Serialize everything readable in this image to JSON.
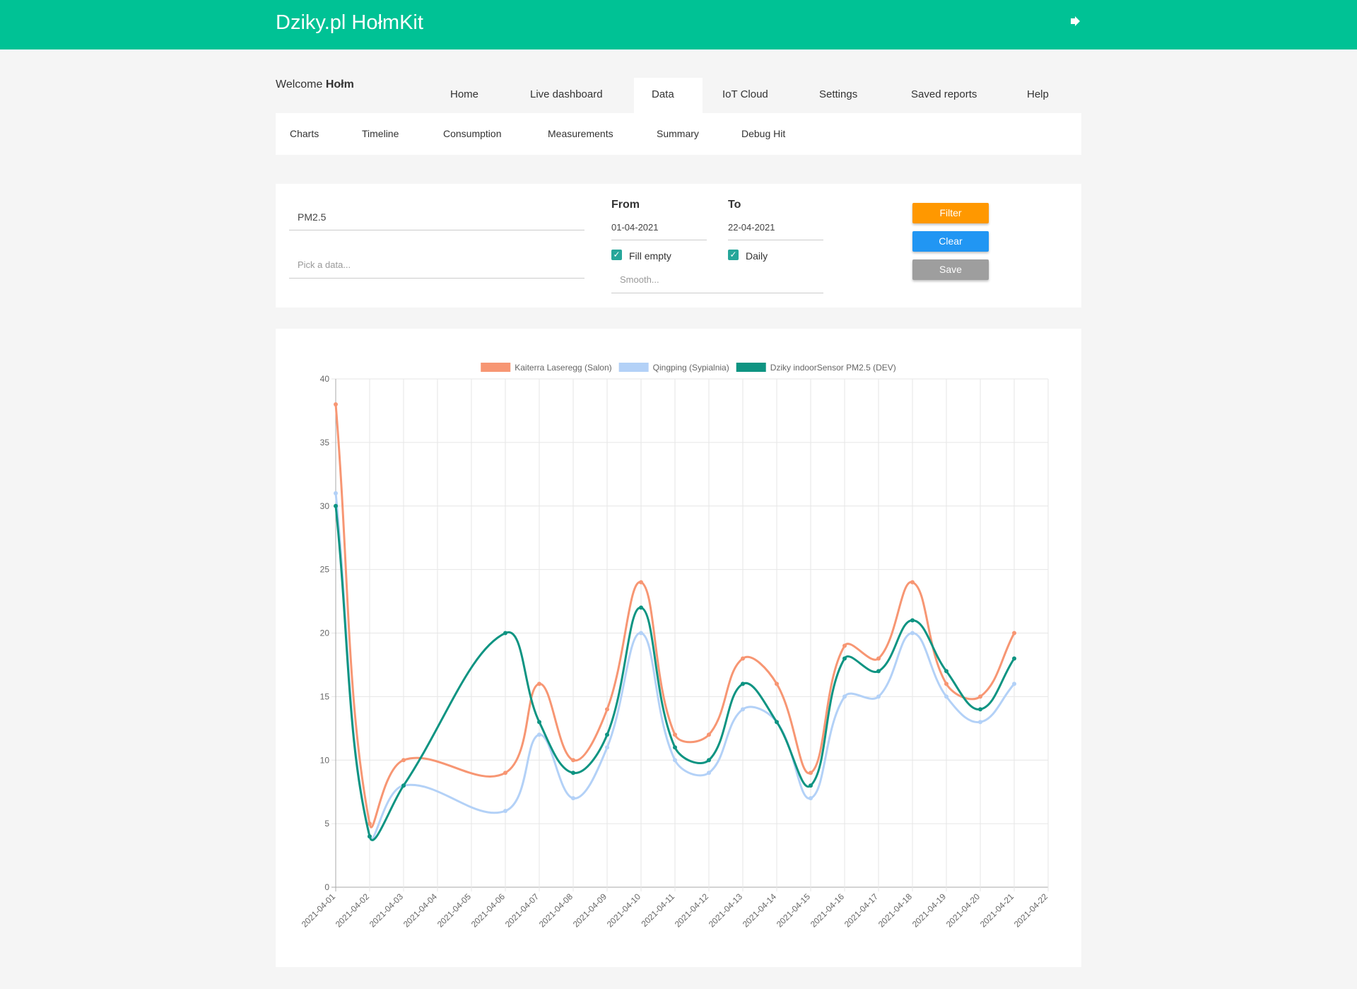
{
  "header": {
    "title": "Dziky.pl HołmKit"
  },
  "welcome": {
    "text": "Welcome",
    "user": "Hołm"
  },
  "nav": [
    "Home",
    "Live dashboard",
    "Data",
    "IoT Cloud",
    "Settings",
    "Saved reports",
    "Help"
  ],
  "subnav": [
    "Charts",
    "Timeline",
    "Consumption",
    "Measurements",
    "Summary",
    "Debug Hit"
  ],
  "filters": {
    "sensor": "PM2.5",
    "data_placeholder": "Pick a data...",
    "from_label": "From",
    "from": "01-04-2021",
    "to_label": "To",
    "to": "22-04-2021",
    "fill_empty": "Fill empty",
    "daily": "Daily",
    "smooth_placeholder": "Smooth...",
    "buttons": [
      "Filter",
      "Clear",
      "Save"
    ]
  },
  "chart_data": {
    "type": "line",
    "span_gaps": true,
    "grid": true,
    "legend": "top",
    "categories": [
      "2021-04-01",
      "2021-04-02",
      "2021-04-03",
      "2021-04-04",
      "2021-04-05",
      "2021-04-06",
      "2021-04-07",
      "2021-04-08",
      "2021-04-09",
      "2021-04-10",
      "2021-04-11",
      "2021-04-12",
      "2021-04-13",
      "2021-04-14",
      "2021-04-15",
      "2021-04-16",
      "2021-04-17",
      "2021-04-18",
      "2021-04-19",
      "2021-04-20",
      "2021-04-21",
      "2021-04-22"
    ],
    "series": [
      {
        "name": "Kaiterra Laseregg (Salon)",
        "color": "#f79673",
        "values": [
          38,
          5,
          10,
          null,
          null,
          9,
          16,
          10,
          14,
          24,
          12,
          12,
          18,
          16,
          9,
          19,
          18,
          24,
          16,
          15,
          20,
          null
        ]
      },
      {
        "name": "Qingping (Sypialnia)",
        "color": "#b3d1f7",
        "values": [
          31,
          4,
          8,
          null,
          null,
          6,
          12,
          7,
          11,
          20,
          10,
          9,
          14,
          13,
          7,
          15,
          15,
          20,
          15,
          13,
          16,
          null
        ]
      },
      {
        "name": "Dziky indoorSensor PM2.5 (DEV)",
        "color": "#0e9482",
        "values": [
          30,
          4,
          8,
          null,
          null,
          20,
          13,
          9,
          12,
          22,
          11,
          10,
          16,
          13,
          8,
          18,
          17,
          21,
          17,
          14,
          18,
          null
        ]
      }
    ],
    "ylim": [
      0,
      40
    ],
    "yticks": [
      0,
      5,
      10,
      15,
      20,
      25,
      30,
      35,
      40
    ]
  }
}
